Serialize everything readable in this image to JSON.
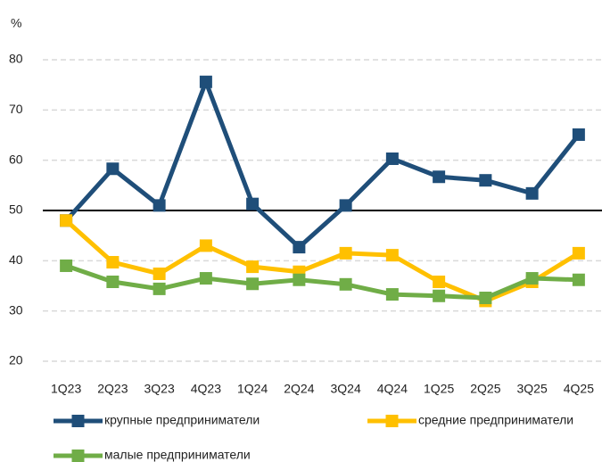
{
  "chart_data": {
    "type": "line",
    "y_label": "%",
    "categories": [
      "1Q23",
      "2Q23",
      "3Q23",
      "4Q23",
      "1Q24",
      "2Q24",
      "3Q24",
      "4Q24",
      "1Q25",
      "2Q25",
      "3Q25",
      "4Q25"
    ],
    "series": [
      {
        "name": "крупные предприниматели",
        "color": "#1f4e79",
        "values": [
          48,
          58.3,
          51,
          75.6,
          51.3,
          42.7,
          51,
          60.3,
          56.7,
          56,
          53.4,
          65.1
        ]
      },
      {
        "name": "средние предприниматели",
        "color": "#ffc000",
        "values": [
          48,
          39.7,
          37.4,
          43,
          38.8,
          37.8,
          41.5,
          41.1,
          35.8,
          32,
          35.8,
          41.5
        ]
      },
      {
        "name": "малые предприниматели",
        "color": "#70ad47",
        "values": [
          39,
          35.8,
          34.4,
          36.5,
          35.4,
          36.2,
          35.3,
          33.3,
          33,
          32.6,
          36.5,
          36.2
        ]
      }
    ],
    "reference_line": 50,
    "ylim": [
      20,
      80
    ],
    "yticks": [
      20,
      30,
      40,
      50,
      60,
      70,
      80
    ],
    "grid": true,
    "legend": "bottom"
  }
}
